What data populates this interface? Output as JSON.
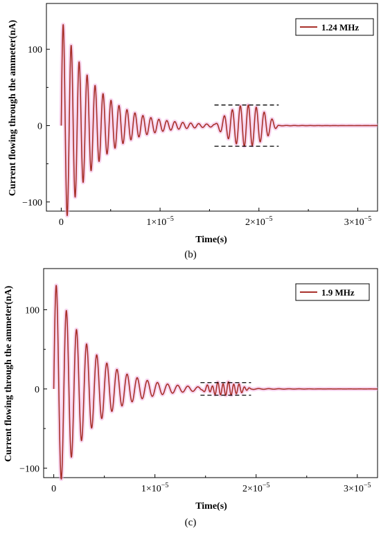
{
  "chart_data": [
    {
      "type": "line",
      "panel_label": "(b)",
      "xlabel": "Time(s)",
      "ylabel": "Current flowing through the ammeter(nA)",
      "xlim": [
        -1.5e-06,
        3.2e-05
      ],
      "ylim": [
        -112,
        160
      ],
      "x_ticks": [
        {
          "value": 0,
          "mantissa": "0",
          "exp": ""
        },
        {
          "value": 1e-05,
          "mantissa": "1×10",
          "exp": "−5"
        },
        {
          "value": 2e-05,
          "mantissa": "2×10",
          "exp": "−5"
        },
        {
          "value": 3e-05,
          "mantissa": "3×10",
          "exp": "−5"
        }
      ],
      "y_ticks": [
        {
          "value": 100,
          "label": "100"
        },
        {
          "value": 0,
          "label": "0"
        },
        {
          "value": -100,
          "label": "−100"
        }
      ],
      "legend": {
        "position": "top-right"
      },
      "series": [
        {
          "name": "1.24 MHz",
          "color": "#a8302a",
          "halo_color": "#f2b6e4",
          "frequency_hz": 1240000,
          "initial_decay": {
            "amplitude_nA": 140,
            "decay_time_s": 3.5e-06,
            "start_s": 0
          },
          "burst": {
            "start_s": 1.55e-05,
            "end_s": 2.2e-05,
            "peak_nA": 27
          }
        }
      ],
      "envelope_lines_nA": [
        27,
        -27
      ],
      "envelope_range_s": [
        1.55e-05,
        2.2e-05
      ]
    },
    {
      "type": "line",
      "panel_label": "(c)",
      "xlabel": "Time(s)",
      "ylabel": "Current flowing through the ammeter(nA)",
      "xlim": [
        -1e-06,
        3.2e-05
      ],
      "ylim": [
        -112,
        152
      ],
      "x_ticks": [
        {
          "value": 0,
          "mantissa": "0",
          "exp": ""
        },
        {
          "value": 1e-05,
          "mantissa": "1×10",
          "exp": "−5"
        },
        {
          "value": 2e-05,
          "mantissa": "2×10",
          "exp": "−5"
        },
        {
          "value": 3e-05,
          "mantissa": "3×10",
          "exp": "−5"
        }
      ],
      "y_ticks": [
        {
          "value": 100,
          "label": "100"
        },
        {
          "value": 0,
          "label": "0"
        },
        {
          "value": -100,
          "label": "−100"
        }
      ],
      "legend": {
        "position": "top-right"
      },
      "series": [
        {
          "name": "1.9 MHz",
          "color": "#a8302a",
          "halo_color": "#f2b6e4",
          "frequency_hz": 1000000,
          "initial_decay": {
            "amplitude_nA": 140,
            "decay_time_s": 3.6e-06,
            "start_s": 0
          },
          "burst": {
            "start_s": 1.45e-05,
            "end_s": 1.95e-05,
            "peak_nA": 8,
            "frequency_hz": 1900000
          }
        }
      ],
      "envelope_lines_nA": [
        8,
        -8
      ],
      "envelope_range_s": [
        1.45e-05,
        1.95e-05
      ]
    }
  ]
}
